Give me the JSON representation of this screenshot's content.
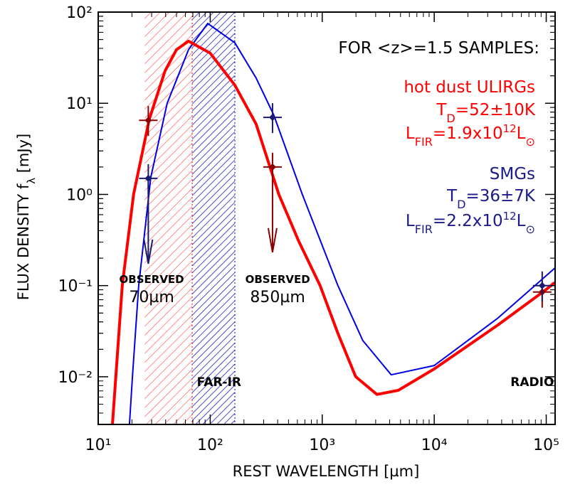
{
  "chart_data": {
    "type": "line",
    "annotation": "FOR <z>=1.5 SAMPLES:",
    "xlabel": "REST WAVELENGTH [µm]",
    "ylabel": [
      {
        "t": "FLUX DENSITY f"
      },
      {
        "sub": "λ"
      },
      {
        "t": " [mJy]"
      }
    ],
    "xlog": true,
    "ylog": true,
    "xlim": [
      10,
      120000
    ],
    "ylim": [
      0.003,
      100
    ],
    "xticks": [
      {
        "value": 10,
        "label": "10¹"
      },
      {
        "value": 100,
        "label": "10²"
      },
      {
        "value": 1000,
        "label": "10³"
      },
      {
        "value": 10000,
        "label": "10⁴"
      },
      {
        "value": 100000,
        "label": "10⁵"
      }
    ],
    "yticks": [
      {
        "value": 0.01,
        "label": "10⁻²"
      },
      {
        "value": 0.1,
        "label": "10⁻¹"
      },
      {
        "value": 1,
        "label": "10⁰"
      },
      {
        "value": 10,
        "label": "10¹"
      },
      {
        "value": 100,
        "label": "10²"
      }
    ],
    "series": [
      {
        "name": "hot dust ULIRGs",
        "color": "#ff0000",
        "width": 4,
        "details": [
          [
            {
              "t": "T"
            },
            {
              "sub": "D"
            },
            {
              "t": "=52±10K"
            }
          ],
          [
            {
              "t": "L"
            },
            {
              "sub": "FIR"
            },
            {
              "t": "=1.9x10"
            },
            {
              "sup": "12"
            },
            {
              "t": "L"
            },
            {
              "sub": "⊙"
            }
          ]
        ],
        "x": [
          13.4,
          16.4,
          20.7,
          28.6,
          39.5,
          49.9,
          64,
          100,
          166,
          257,
          410,
          617,
          957,
          1380,
          1990,
          3080,
          4780,
          10000,
          37000,
          100000,
          119000
        ],
        "values": [
          0.003,
          0.1,
          1,
          6.7,
          22.6,
          38.7,
          48,
          35.4,
          15.8,
          5.9,
          1,
          0.306,
          0.1,
          0.0299,
          0.01,
          0.0064,
          0.0071,
          0.0122,
          0.037,
          0.0906,
          0.108
        ]
      },
      {
        "name": "SMGs",
        "color": "#0000e6",
        "width": 2,
        "details": [
          [
            {
              "t": "T"
            },
            {
              "sub": "D"
            },
            {
              "t": "=36±7K"
            }
          ],
          [
            {
              "t": "L"
            },
            {
              "sub": "FIR"
            },
            {
              "t": "=2.2x10"
            },
            {
              "sup": "12"
            },
            {
              "t": "L"
            },
            {
              "sub": "⊙"
            }
          ]
        ],
        "x": [
          19,
          20.2,
          23,
          29.5,
          41.3,
          64,
          95,
          166,
          257,
          370,
          664,
          1380,
          2300,
          4130,
          10000,
          37000,
          119000
        ],
        "values": [
          0.003,
          0.01,
          0.1,
          1.54,
          10,
          38.7,
          75,
          46,
          18.9,
          7.4,
          1,
          0.1,
          0.025,
          0.0105,
          0.0133,
          0.044,
          0.155
        ]
      }
    ],
    "points": [
      {
        "color": "#8b0000",
        "x": [
          28,
          360,
          92000
        ],
        "values": [
          6.5,
          2.0,
          0.085
        ],
        "upper_limits": [
          false,
          true,
          false
        ]
      },
      {
        "color": "#1a1a6e",
        "x": [
          28,
          360,
          92000
        ],
        "values": [
          1.5,
          7.0,
          0.1
        ],
        "upper_limits": [
          true,
          false,
          false
        ]
      }
    ],
    "bands": [
      {
        "range": [
          26,
          69
        ],
        "color": "#ff0000"
      },
      {
        "range": [
          69,
          166
        ],
        "color": "#0000e6"
      }
    ],
    "labels": [
      {
        "lines": [
          "OBSERVED",
          "70µm"
        ],
        "x": 30
      },
      {
        "lines": [
          "OBSERVED",
          "850µm"
        ],
        "x": 400
      },
      {
        "lines": [
          "FAR-IR"
        ],
        "x": 120
      },
      {
        "lines": [
          "RADIO"
        ],
        "x": 75000
      }
    ]
  }
}
